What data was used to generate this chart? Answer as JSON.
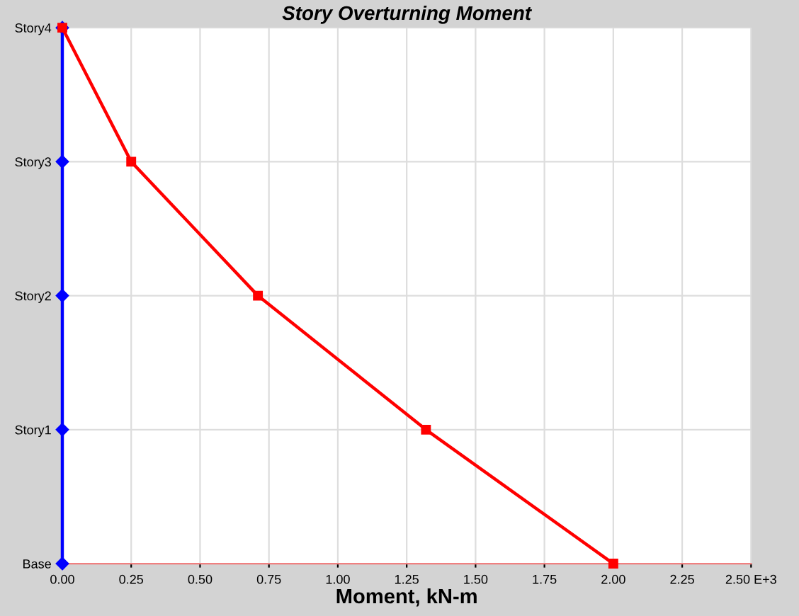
{
  "chart_data": {
    "type": "line",
    "title": "Story Overturning Moment",
    "xlabel": "Moment, kN-m",
    "orientation": "horizontal",
    "categories": [
      "Story4",
      "Story3",
      "Story2",
      "Story1",
      "Base"
    ],
    "series": [
      {
        "color": "#0000ff",
        "marker": "diamond",
        "values": [
          0,
          0,
          0,
          0,
          0
        ]
      },
      {
        "color": "#ff0000",
        "marker": "square",
        "values": [
          0,
          0.25,
          0.71,
          1.32,
          2.0
        ]
      }
    ],
    "xlim": [
      0,
      2.5
    ],
    "xticks": [
      {
        "value": 0,
        "label": "0.00"
      },
      {
        "value": 0.25,
        "label": "0.25"
      },
      {
        "value": 0.5,
        "label": "0.50"
      },
      {
        "value": 0.75,
        "label": "0.75"
      },
      {
        "value": 1.0,
        "label": "1.00"
      },
      {
        "value": 1.25,
        "label": "1.25"
      },
      {
        "value": 1.5,
        "label": "1.50"
      },
      {
        "value": 1.75,
        "label": "1.75"
      },
      {
        "value": 2.0,
        "label": "2.00"
      },
      {
        "value": 2.25,
        "label": "2.25"
      },
      {
        "value": 2.5,
        "label": "2.50 E+3"
      }
    ],
    "grid": true,
    "line_style": "solid",
    "legend": false
  }
}
